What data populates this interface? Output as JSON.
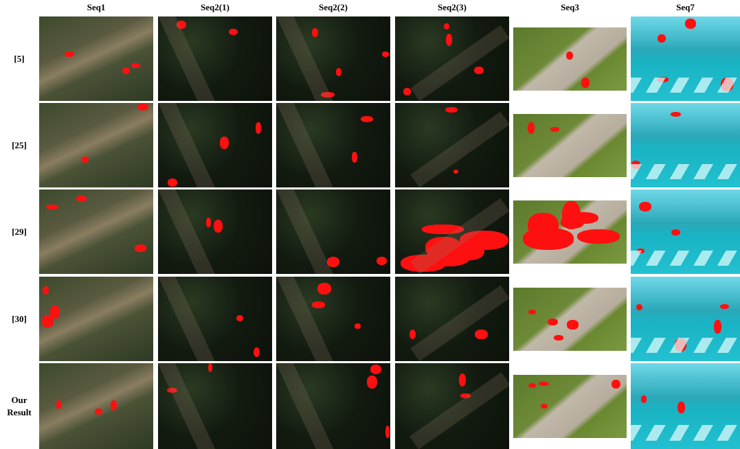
{
  "columns": [
    "Seq1",
    "Seq2(1)",
    "Seq2(2)",
    "Seq2(3)",
    "Seq3",
    "Seq7"
  ],
  "rows": [
    "[5]",
    "[25]",
    "[29]",
    "[30]",
    "Our Result"
  ]
}
